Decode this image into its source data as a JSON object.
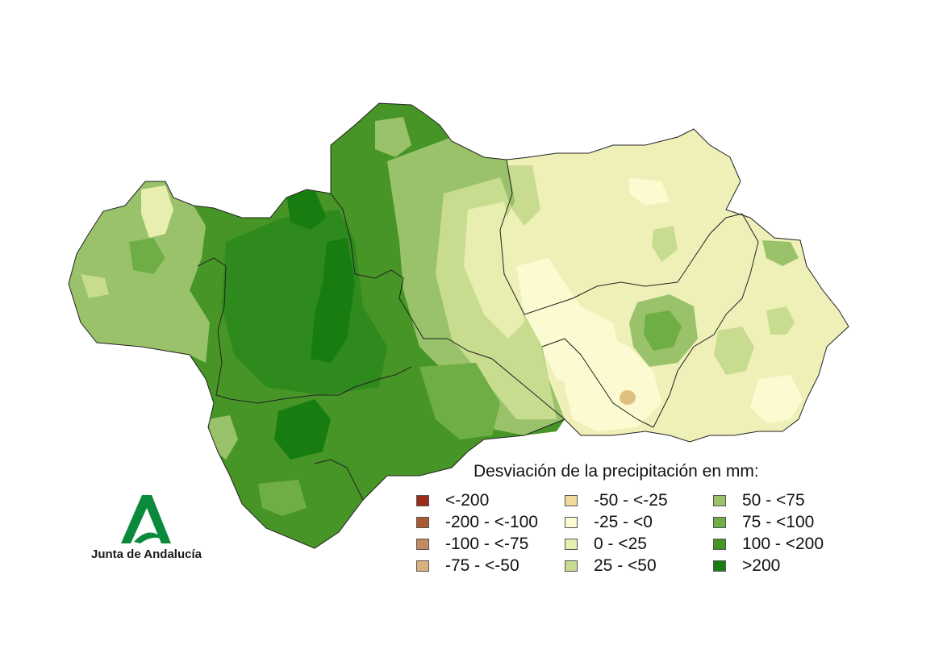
{
  "map": {
    "legend_title": "Desviación de la precipitación en mm:",
    "legend": [
      {
        "label": "<-200",
        "color": "#9a2a1a"
      },
      {
        "label": "-200 - <-100",
        "color": "#a85a35"
      },
      {
        "label": "-100 - <-75",
        "color": "#c48a60"
      },
      {
        "label": "-75 - <-50",
        "color": "#d8b080"
      },
      {
        "label": "-50 - <-25",
        "color": "#eedb9a"
      },
      {
        "label": "-25 - <0",
        "color": "#fbfad0"
      },
      {
        "label": "0 - <25",
        "color": "#e8edb0"
      },
      {
        "label": "25 - <50",
        "color": "#c8dc90"
      },
      {
        "label": "50 - <75",
        "color": "#99c26a"
      },
      {
        "label": "75 - <100",
        "color": "#6fae44"
      },
      {
        "label": "100 - <200",
        "color": "#469526"
      },
      {
        "label": ">200",
        "color": "#187d10"
      }
    ]
  },
  "logo": {
    "text": "Junta de Andalucía",
    "color": "#0b8a3c"
  }
}
